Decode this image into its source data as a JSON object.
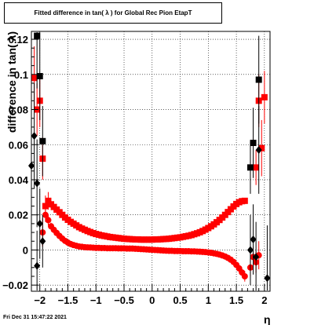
{
  "title": "Fitted difference in tan( λ ) for Global Rec Pion EtapT",
  "footer": "Fri Dec 31 15:47:22 2021",
  "chart_data": {
    "type": "scatter",
    "title": "Fitted difference in tan( λ ) for Global Rec Pion EtapT",
    "xlabel": "η",
    "ylabel": "difference in tan( λ)",
    "xlim": [
      -2.15,
      2.1
    ],
    "ylim": [
      -0.0235,
      0.1245
    ],
    "x_ticks": [
      -2,
      -1.5,
      -1,
      -0.5,
      0,
      0.5,
      1,
      1.5,
      2
    ],
    "x_tick_labels": [
      "−2",
      "−1.5",
      "−1",
      "−0.5",
      "0",
      "0.5",
      "1",
      "1.5",
      "2"
    ],
    "y_ticks": [
      -0.02,
      0,
      0.02,
      0.04,
      0.06,
      0.08,
      0.1,
      0.12
    ],
    "y_tick_labels": [
      "−0.02",
      "0",
      "0.02",
      "0.04",
      "0.06",
      "0.08",
      "0.1",
      "0.12"
    ],
    "grid": true,
    "colors": {
      "red": "#ff0000",
      "black": "#000000"
    },
    "series": [
      {
        "marker": "red-square",
        "points": [
          [
            -2.1,
            0.098,
            0.018
          ],
          [
            -2.05,
            0.08,
            0.015
          ],
          [
            -2.0,
            0.085,
            0.015
          ],
          [
            -1.95,
            0.052,
            0.012
          ],
          [
            -1.9,
            0.025,
            0.006
          ],
          [
            -1.85,
            0.028,
            0.005
          ],
          [
            -1.8,
            0.026,
            0.002
          ],
          [
            -1.75,
            0.0245,
            0.001
          ],
          [
            -1.7,
            0.023,
            0.001
          ],
          [
            -1.65,
            0.0215,
            0.001
          ],
          [
            -1.6,
            0.02,
            0.001
          ],
          [
            -1.55,
            0.0185,
            0.001
          ],
          [
            -1.5,
            0.0172,
            0.001
          ],
          [
            -1.45,
            0.016,
            0.001
          ],
          [
            -1.4,
            0.015,
            0.001
          ],
          [
            -1.35,
            0.014,
            0.001
          ],
          [
            -1.3,
            0.013,
            0.001
          ],
          [
            -1.25,
            0.0122,
            0.001
          ],
          [
            -1.2,
            0.0115,
            0.001
          ],
          [
            -1.15,
            0.0108,
            0.001
          ],
          [
            -1.1,
            0.0102,
            0.001
          ],
          [
            -1.05,
            0.0096,
            0.001
          ],
          [
            -1.0,
            0.0091,
            0.001
          ],
          [
            -0.95,
            0.0087,
            0.001
          ],
          [
            -0.9,
            0.0083,
            0.001
          ],
          [
            -0.85,
            0.008,
            0.001
          ],
          [
            -0.8,
            0.0077,
            0.001
          ],
          [
            -0.75,
            0.0074,
            0.001
          ],
          [
            -0.7,
            0.0072,
            0.001
          ],
          [
            -0.65,
            0.007,
            0.001
          ],
          [
            -0.6,
            0.0068,
            0.001
          ],
          [
            -0.55,
            0.0066,
            0.001
          ],
          [
            -0.5,
            0.0064,
            0.001
          ],
          [
            -0.45,
            0.0063,
            0.001
          ],
          [
            -0.4,
            0.0062,
            0.001
          ],
          [
            -0.35,
            0.0061,
            0.001
          ],
          [
            -0.3,
            0.006,
            0.001
          ],
          [
            -0.25,
            0.006,
            0.001
          ],
          [
            -0.2,
            0.0059,
            0.001
          ],
          [
            -0.15,
            0.0059,
            0.001
          ],
          [
            -0.1,
            0.0059,
            0.001
          ],
          [
            -0.05,
            0.0059,
            0.001
          ],
          [
            0.0,
            0.0059,
            0.001
          ],
          [
            0.05,
            0.006,
            0.001
          ],
          [
            0.1,
            0.006,
            0.001
          ],
          [
            0.15,
            0.0061,
            0.001
          ],
          [
            0.2,
            0.0062,
            0.001
          ],
          [
            0.25,
            0.0063,
            0.001
          ],
          [
            0.3,
            0.0064,
            0.001
          ],
          [
            0.35,
            0.0066,
            0.001
          ],
          [
            0.4,
            0.0068,
            0.001
          ],
          [
            0.45,
            0.007,
            0.001
          ],
          [
            0.5,
            0.0072,
            0.001
          ],
          [
            0.55,
            0.0075,
            0.001
          ],
          [
            0.6,
            0.0078,
            0.001
          ],
          [
            0.65,
            0.0081,
            0.001
          ],
          [
            0.7,
            0.0085,
            0.001
          ],
          [
            0.75,
            0.009,
            0.001
          ],
          [
            0.8,
            0.0095,
            0.001
          ],
          [
            0.85,
            0.0101,
            0.001
          ],
          [
            0.9,
            0.0108,
            0.001
          ],
          [
            0.95,
            0.0116,
            0.001
          ],
          [
            1.0,
            0.0125,
            0.001
          ],
          [
            1.05,
            0.0135,
            0.001
          ],
          [
            1.1,
            0.0146,
            0.001
          ],
          [
            1.15,
            0.0158,
            0.001
          ],
          [
            1.2,
            0.0171,
            0.001
          ],
          [
            1.25,
            0.0185,
            0.001
          ],
          [
            1.3,
            0.02,
            0.001
          ],
          [
            1.35,
            0.0216,
            0.001
          ],
          [
            1.4,
            0.0232,
            0.001
          ],
          [
            1.45,
            0.0248,
            0.001
          ],
          [
            1.5,
            0.0262,
            0.001
          ],
          [
            1.55,
            0.0272,
            0.001
          ],
          [
            1.6,
            0.0278,
            0.001
          ],
          [
            1.65,
            0.028,
            0.001
          ],
          [
            1.85,
            0.047,
            0.01
          ],
          [
            1.9,
            0.085,
            0.015
          ],
          [
            1.95,
            0.058,
            0.016
          ],
          [
            2.0,
            0.087,
            0.015
          ]
        ]
      },
      {
        "marker": "red-circle",
        "points": [
          [
            -1.95,
            0.01,
            0.008
          ],
          [
            -1.9,
            0.02,
            0.004
          ],
          [
            -1.85,
            0.017,
            0.003
          ],
          [
            -1.8,
            0.0135,
            0.002
          ],
          [
            -1.75,
            0.0115,
            0.001
          ],
          [
            -1.7,
            0.0097,
            0.001
          ],
          [
            -1.65,
            0.008,
            0.001
          ],
          [
            -1.6,
            0.0065,
            0.001
          ],
          [
            -1.55,
            0.0052,
            0.001
          ],
          [
            -1.5,
            0.0042,
            0.001
          ],
          [
            -1.45,
            0.0034,
            0.001
          ],
          [
            -1.4,
            0.0028,
            0.001
          ],
          [
            -1.35,
            0.0024,
            0.001
          ],
          [
            -1.3,
            0.002,
            0.001
          ],
          [
            -1.25,
            0.0018,
            0.001
          ],
          [
            -1.2,
            0.0016,
            0.001
          ],
          [
            -1.15,
            0.0015,
            0.001
          ],
          [
            -1.1,
            0.0014,
            0.001
          ],
          [
            -1.05,
            0.0013,
            0.001
          ],
          [
            -1.0,
            0.0012,
            0.001
          ],
          [
            -0.95,
            0.0012,
            0.001
          ],
          [
            -0.9,
            0.0011,
            0.001
          ],
          [
            -0.85,
            0.0011,
            0.001
          ],
          [
            -0.8,
            0.001,
            0.001
          ],
          [
            -0.75,
            0.001,
            0.001
          ],
          [
            -0.7,
            0.001,
            0.001
          ],
          [
            -0.65,
            0.001,
            0.001
          ],
          [
            -0.6,
            0.0009,
            0.001
          ],
          [
            -0.55,
            0.0009,
            0.001
          ],
          [
            -0.5,
            0.0009,
            0.001
          ],
          [
            -0.45,
            0.0008,
            0.001
          ],
          [
            -0.4,
            0.0008,
            0.001
          ],
          [
            -0.35,
            0.0008,
            0.001
          ],
          [
            -0.3,
            0.0007,
            0.001
          ],
          [
            -0.25,
            0.0006,
            0.001
          ],
          [
            -0.2,
            0.0005,
            0.001
          ],
          [
            -0.15,
            0.0004,
            0.001
          ],
          [
            -0.1,
            0.0003,
            0.001
          ],
          [
            -0.05,
            0.0002,
            0.001
          ],
          [
            0.0,
            0.0001,
            0.001
          ],
          [
            0.05,
            0.0,
            0.001
          ],
          [
            0.1,
            -0.0001,
            0.001
          ],
          [
            0.15,
            -0.0002,
            0.001
          ],
          [
            0.2,
            -0.0003,
            0.001
          ],
          [
            0.25,
            -0.0004,
            0.001
          ],
          [
            0.3,
            -0.0005,
            0.001
          ],
          [
            0.35,
            -0.0005,
            0.001
          ],
          [
            0.4,
            -0.0006,
            0.001
          ],
          [
            0.45,
            -0.0006,
            0.001
          ],
          [
            0.5,
            -0.0006,
            0.001
          ],
          [
            0.55,
            -0.0007,
            0.001
          ],
          [
            0.6,
            -0.0007,
            0.001
          ],
          [
            0.65,
            -0.0007,
            0.001
          ],
          [
            0.7,
            -0.0008,
            0.001
          ],
          [
            0.75,
            -0.0008,
            0.001
          ],
          [
            0.8,
            -0.0009,
            0.001
          ],
          [
            0.85,
            -0.001,
            0.001
          ],
          [
            0.9,
            -0.0011,
            0.001
          ],
          [
            0.95,
            -0.0012,
            0.001
          ],
          [
            1.0,
            -0.0014,
            0.001
          ],
          [
            1.05,
            -0.0016,
            0.001
          ],
          [
            1.1,
            -0.0019,
            0.001
          ],
          [
            1.15,
            -0.0022,
            0.001
          ],
          [
            1.2,
            -0.0026,
            0.001
          ],
          [
            1.25,
            -0.0031,
            0.001
          ],
          [
            1.3,
            -0.0037,
            0.001
          ],
          [
            1.35,
            -0.0045,
            0.001
          ],
          [
            1.4,
            -0.0055,
            0.001
          ],
          [
            1.45,
            -0.0068,
            0.001
          ],
          [
            1.5,
            -0.0085,
            0.001
          ],
          [
            1.55,
            -0.0105,
            0.002
          ],
          [
            1.6,
            -0.0128,
            0.002
          ],
          [
            1.65,
            -0.015,
            0.003
          ],
          [
            1.75,
            -0.01,
            0.005
          ],
          [
            1.8,
            -0.004,
            0.006
          ],
          [
            1.85,
            -0.007,
            0.006
          ],
          [
            1.9,
            -0.003,
            0.008
          ]
        ]
      },
      {
        "marker": "black-square",
        "points": [
          [
            -2.05,
            0.122,
            0.03
          ],
          [
            -2.0,
            0.099,
            0.025
          ],
          [
            -1.95,
            0.062,
            0.02
          ],
          [
            1.75,
            0.047,
            0.015
          ],
          [
            1.8,
            0.061,
            0.02
          ],
          [
            1.9,
            0.097,
            0.025
          ]
        ]
      },
      {
        "marker": "black-diamond",
        "points": [
          [
            -2.15,
            0.048,
            0.03
          ],
          [
            -2.1,
            0.065,
            0.03
          ],
          [
            -2.05,
            0.038,
            0.025
          ],
          [
            -2.0,
            0.015,
            0.02
          ],
          [
            -1.95,
            0.005,
            0.015
          ],
          [
            -2.05,
            -0.009,
            0.02
          ],
          [
            1.75,
            0.0,
            0.02
          ],
          [
            1.8,
            0.006,
            0.02
          ],
          [
            1.85,
            -0.004,
            0.02
          ],
          [
            1.9,
            0.057,
            0.025
          ],
          [
            2.05,
            -0.016,
            0.03
          ]
        ]
      }
    ]
  }
}
